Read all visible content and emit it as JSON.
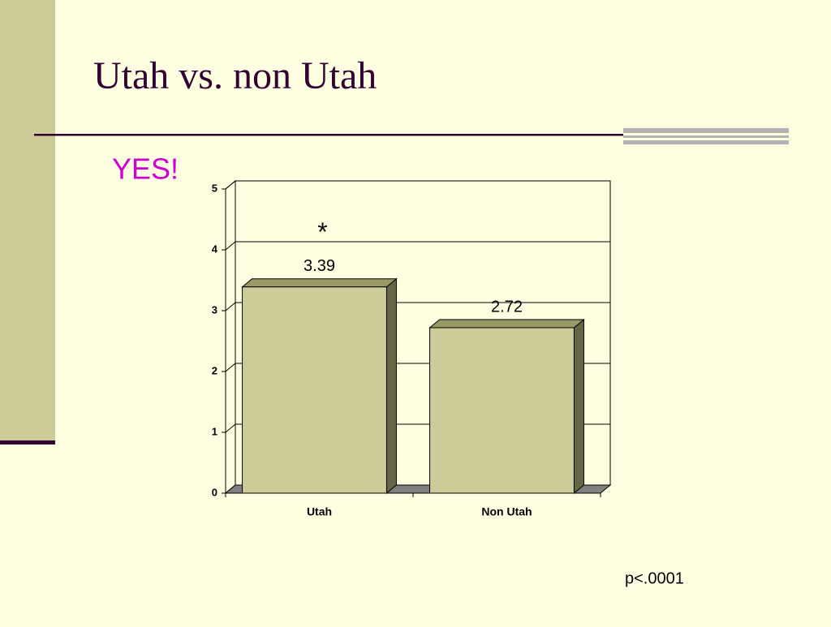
{
  "slide": {
    "title": "Utah vs. non Utah",
    "subtitle": "YES!",
    "footnote": "p<.0001"
  },
  "chart_data": {
    "type": "bar",
    "categories": [
      "Utah",
      "Non Utah"
    ],
    "values": [
      3.39,
      2.72
    ],
    "color": "#cccc99",
    "ylim": [
      0,
      5
    ],
    "yticks": [
      0,
      1,
      2,
      3,
      4,
      5
    ],
    "grid": true,
    "annotation": "*"
  }
}
